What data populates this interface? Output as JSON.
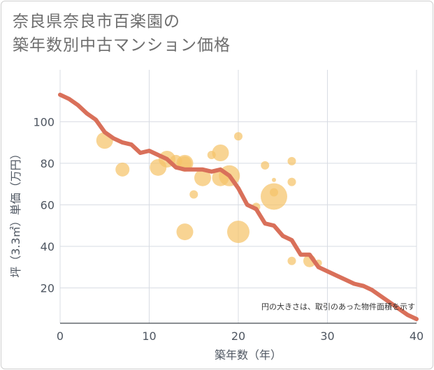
{
  "title_line1": "奈良県奈良市百楽園の",
  "title_line2": "築年数別中古マンション価格",
  "chart_data": {
    "type": "scatter",
    "xlabel": "築年数（年）",
    "ylabel": "坪（3.3㎡）単価（万円）",
    "xlim": [
      0,
      40
    ],
    "ylim": [
      3,
      125
    ],
    "x_ticks": [
      0,
      10,
      20,
      30,
      40
    ],
    "y_ticks": [
      20,
      40,
      60,
      80,
      100
    ],
    "grid": true,
    "note": "円の大きさは、取引のあった物件面積を示す",
    "colors": {
      "bubble": "#f5c469",
      "line": "#d9705a",
      "grid": "#d8dce3"
    },
    "bubbles": [
      {
        "x": 5,
        "y": 91,
        "size": 12
      },
      {
        "x": 7,
        "y": 77,
        "size": 10
      },
      {
        "x": 11,
        "y": 78,
        "size": 12
      },
      {
        "x": 12,
        "y": 82,
        "size": 12
      },
      {
        "x": 13,
        "y": 81,
        "size": 9
      },
      {
        "x": 14,
        "y": 80,
        "size": 12
      },
      {
        "x": 14,
        "y": 80,
        "size": 10
      },
      {
        "x": 14,
        "y": 47,
        "size": 12
      },
      {
        "x": 15,
        "y": 65,
        "size": 6
      },
      {
        "x": 16,
        "y": 73,
        "size": 12
      },
      {
        "x": 17,
        "y": 84,
        "size": 6
      },
      {
        "x": 18,
        "y": 85,
        "size": 12
      },
      {
        "x": 18,
        "y": 73,
        "size": 12
      },
      {
        "x": 19,
        "y": 74,
        "size": 15
      },
      {
        "x": 20,
        "y": 93,
        "size": 6
      },
      {
        "x": 20,
        "y": 47,
        "size": 16
      },
      {
        "x": 22,
        "y": 59,
        "size": 6
      },
      {
        "x": 23,
        "y": 79,
        "size": 6
      },
      {
        "x": 24,
        "y": 72,
        "size": 3
      },
      {
        "x": 24,
        "y": 66,
        "size": 6
      },
      {
        "x": 24,
        "y": 64,
        "size": 19
      },
      {
        "x": 26,
        "y": 81,
        "size": 6
      },
      {
        "x": 26,
        "y": 71,
        "size": 6
      },
      {
        "x": 26,
        "y": 33,
        "size": 6
      },
      {
        "x": 28,
        "y": 33,
        "size": 9
      },
      {
        "x": 29,
        "y": 32,
        "size": 5
      }
    ],
    "trend": {
      "x": [
        0,
        1,
        2,
        3,
        4,
        5,
        6,
        7,
        8,
        9,
        10,
        11,
        12,
        13,
        14,
        15,
        16,
        17,
        18,
        19,
        20,
        21,
        22,
        23,
        24,
        25,
        26,
        27,
        28,
        29,
        30,
        31,
        32,
        33,
        34,
        35,
        36,
        37,
        38,
        39,
        40
      ],
      "y": [
        113,
        111,
        108,
        104,
        101,
        95,
        92,
        90,
        89,
        85,
        86,
        84,
        82,
        78,
        77,
        77,
        77,
        76,
        77,
        74,
        68,
        60,
        58,
        51,
        50,
        45,
        43,
        36,
        36,
        30,
        28,
        26,
        24,
        22,
        21,
        19,
        16,
        13,
        10,
        7,
        5
      ]
    }
  }
}
